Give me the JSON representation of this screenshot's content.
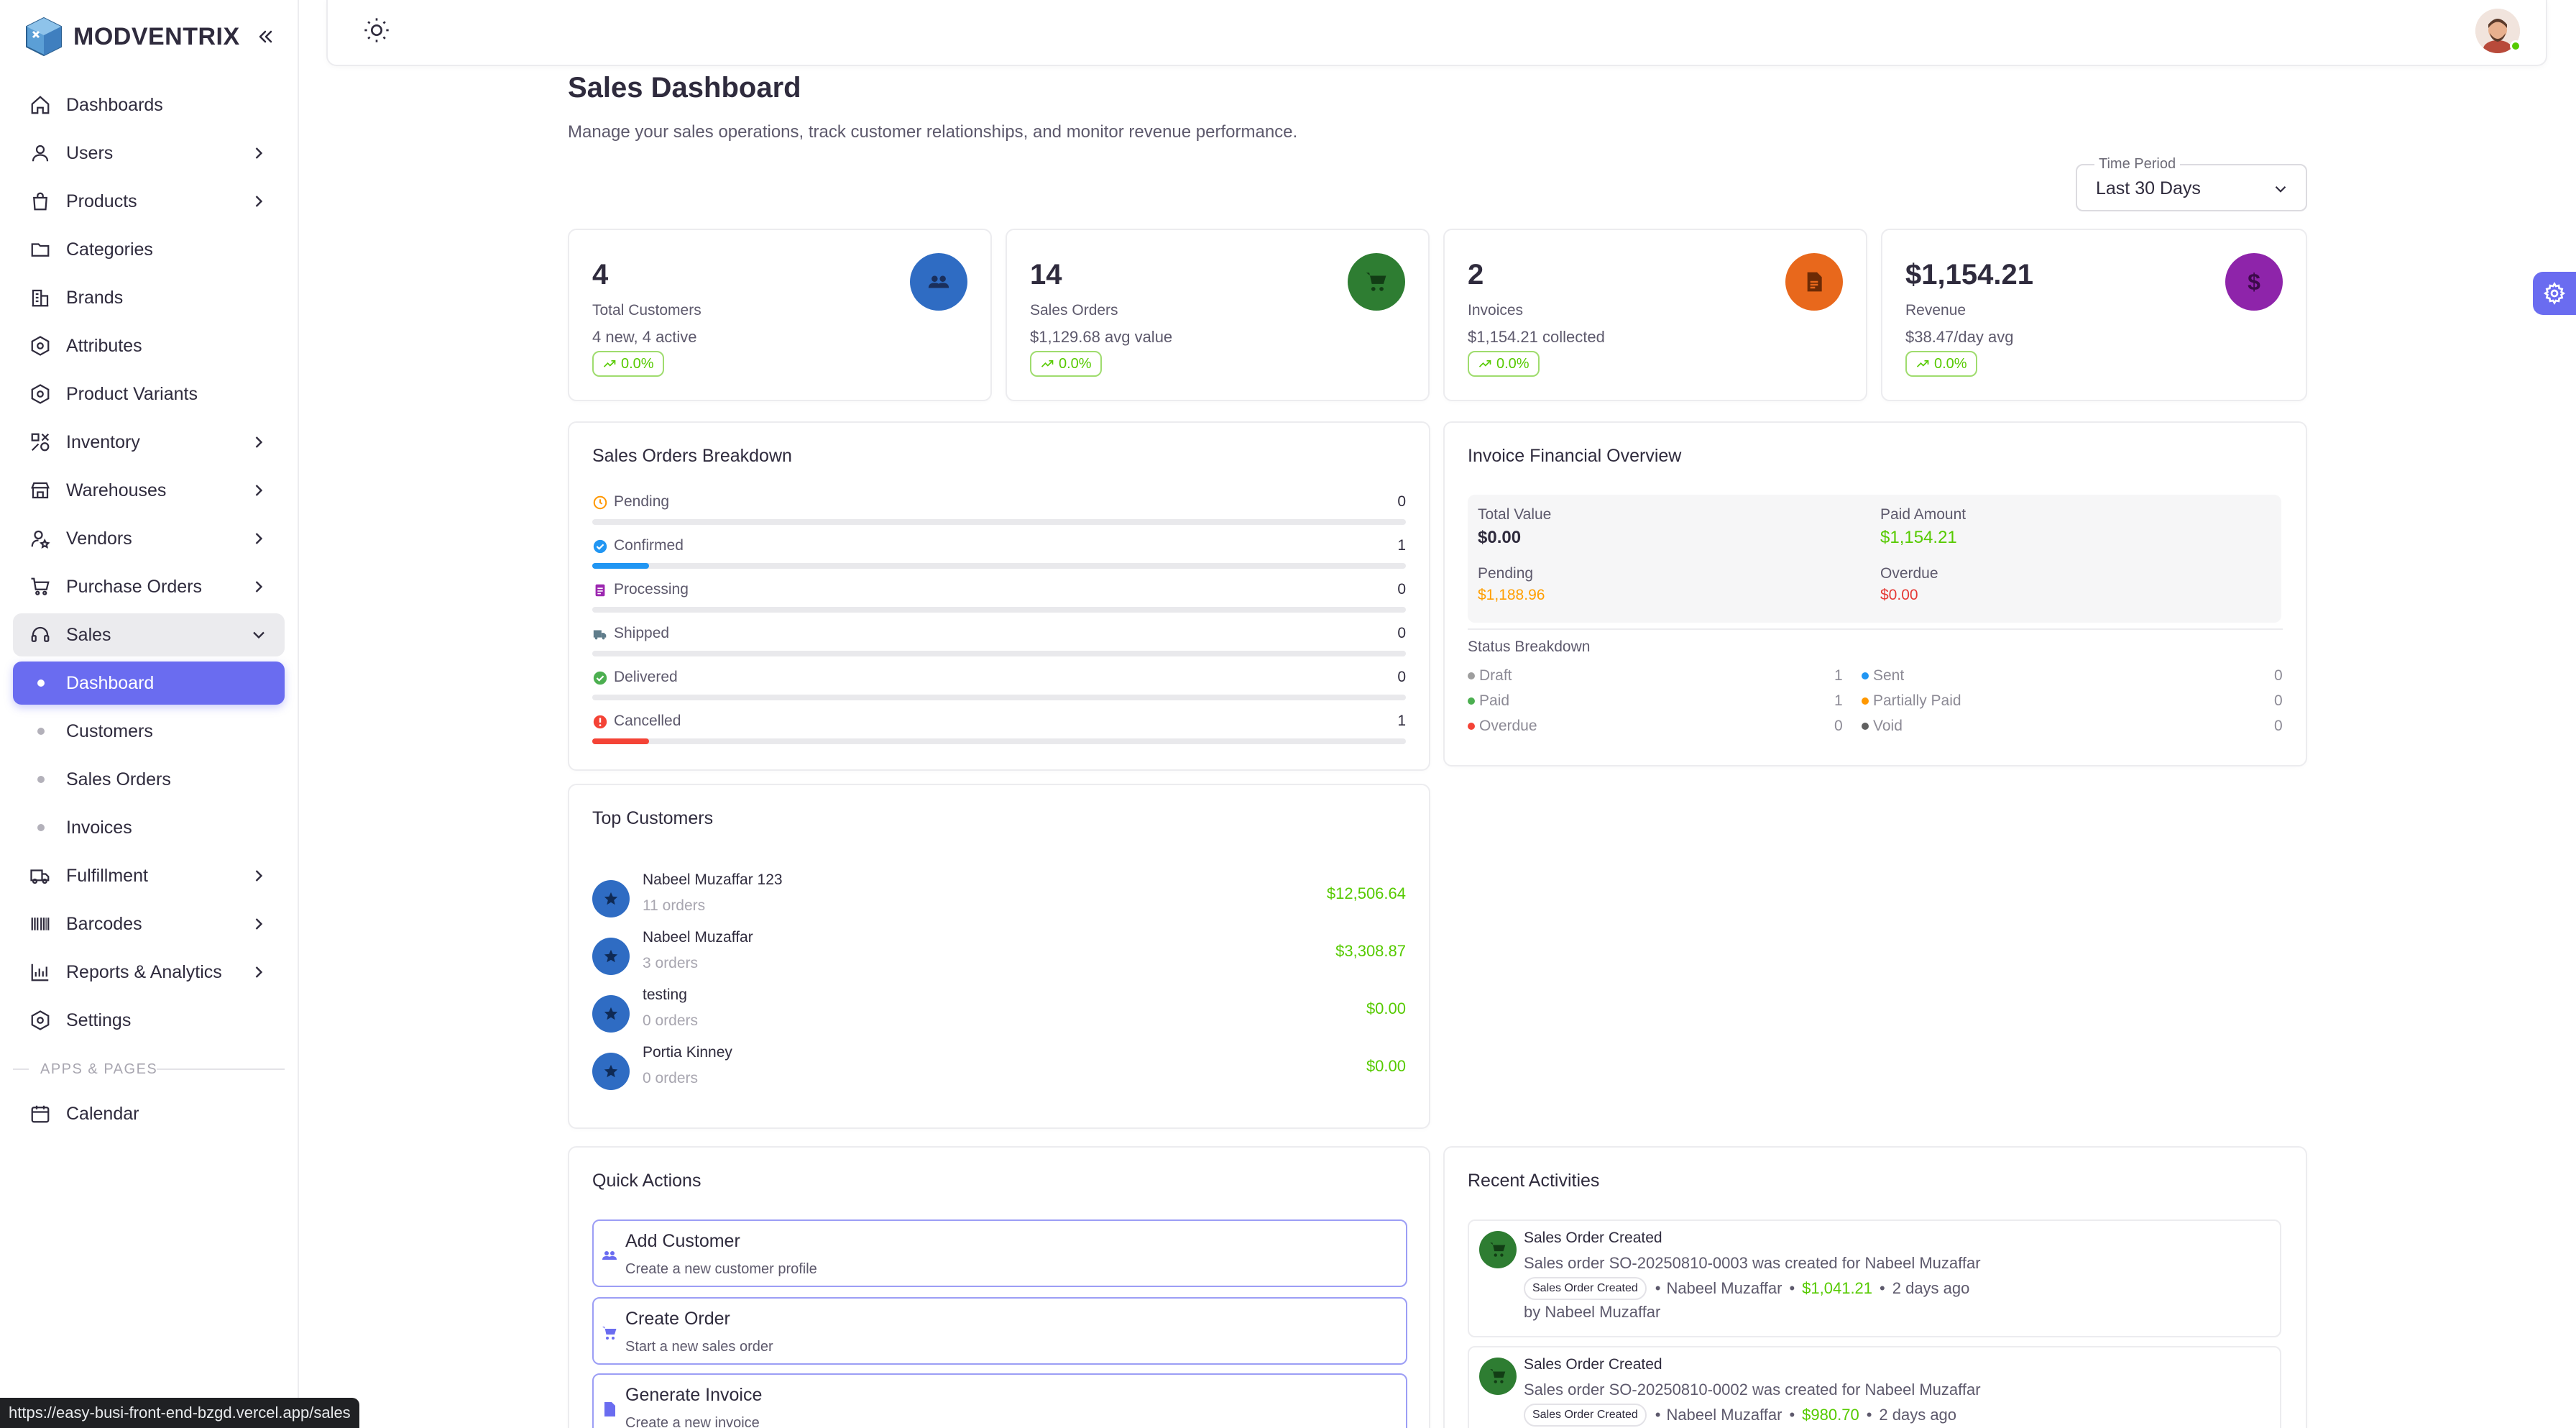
{
  "brand": {
    "name": "MODVENTRIX"
  },
  "nav": {
    "items": [
      {
        "label": "Dashboards",
        "icon": "home-icon",
        "chevron": false
      },
      {
        "label": "Users",
        "icon": "user-icon",
        "chevron": true
      },
      {
        "label": "Products",
        "icon": "bag-icon",
        "chevron": true
      },
      {
        "label": "Categories",
        "icon": "folder-icon",
        "chevron": false
      },
      {
        "label": "Brands",
        "icon": "building-icon",
        "chevron": false
      },
      {
        "label": "Attributes",
        "icon": "hexagon-icon",
        "chevron": false
      },
      {
        "label": "Product Variants",
        "icon": "hexagon-icon",
        "chevron": false
      },
      {
        "label": "Inventory",
        "icon": "shapes-icon",
        "chevron": true
      },
      {
        "label": "Warehouses",
        "icon": "store-icon",
        "chevron": true
      },
      {
        "label": "Vendors",
        "icon": "user-star-icon",
        "chevron": true
      },
      {
        "label": "Purchase Orders",
        "icon": "cart-icon",
        "chevron": true
      },
      {
        "label": "Sales",
        "icon": "headset-icon",
        "chevron": true,
        "open": true
      }
    ],
    "sales_sub": [
      {
        "label": "Dashboard",
        "active": true
      },
      {
        "label": "Customers"
      },
      {
        "label": "Sales Orders"
      },
      {
        "label": "Invoices"
      }
    ],
    "items_after": [
      {
        "label": "Fulfillment",
        "icon": "truck-icon",
        "chevron": true
      },
      {
        "label": "Barcodes",
        "icon": "barcode-icon",
        "chevron": true
      },
      {
        "label": "Reports & Analytics",
        "icon": "chart-icon",
        "chevron": true
      },
      {
        "label": "Settings",
        "icon": "hexagon-icon",
        "chevron": false
      }
    ],
    "section_label": "APPS & PAGES",
    "apps": [
      {
        "label": "Calendar",
        "icon": "calendar-icon"
      }
    ]
  },
  "page": {
    "title": "Sales Dashboard",
    "subtitle": "Manage your sales operations, track customer relationships, and monitor revenue performance."
  },
  "time_period": {
    "label": "Time Period",
    "value": "Last 30 Days"
  },
  "stats": [
    {
      "value": "4",
      "label": "Total Customers",
      "detail": "4 new, 4 active",
      "trend": "0.0%",
      "icon": "users-icon",
      "color": "#2f6cc3"
    },
    {
      "value": "14",
      "label": "Sales Orders",
      "detail": "$1,129.68 avg value",
      "trend": "0.0%",
      "icon": "cart-icon",
      "color": "#2e7d32"
    },
    {
      "value": "2",
      "label": "Invoices",
      "detail": "$1,154.21 collected",
      "trend": "0.0%",
      "icon": "receipt-icon",
      "color": "#e8681c"
    },
    {
      "value": "$1,154.21",
      "label": "Revenue",
      "detail": "$38.47/day avg",
      "trend": "0.0%",
      "icon": "dollar-icon",
      "color": "#8e24aa"
    }
  ],
  "breakdown": {
    "title": "Sales Orders Breakdown",
    "rows": [
      {
        "label": "Pending",
        "count": "0",
        "fraction": 0,
        "color": "#ff9800",
        "icon": "clock-icon"
      },
      {
        "label": "Confirmed",
        "count": "1",
        "fraction": 0.07,
        "color": "#2196f3",
        "icon": "check-circle-icon"
      },
      {
        "label": "Processing",
        "count": "0",
        "fraction": 0,
        "color": "#9c27b0",
        "icon": "clipboard-icon"
      },
      {
        "label": "Shipped",
        "count": "0",
        "fraction": 0,
        "color": "#607d8b",
        "icon": "truck-icon"
      },
      {
        "label": "Delivered",
        "count": "0",
        "fraction": 0,
        "color": "#4caf50",
        "icon": "check-circle-icon"
      },
      {
        "label": "Cancelled",
        "count": "1",
        "fraction": 0.07,
        "color": "#f44336",
        "icon": "alert-circle-icon"
      }
    ]
  },
  "financial": {
    "title": "Invoice Financial Overview",
    "total_value_label": "Total Value",
    "total_value": "$0.00",
    "paid_label": "Paid Amount",
    "paid": "$1,154.21",
    "pending_label": "Pending",
    "pending": "$1,188.96",
    "overdue_label": "Overdue",
    "overdue": "$0.00",
    "status_title": "Status Breakdown",
    "statuses": [
      {
        "label": "Draft",
        "count": "1",
        "color": "#9e9e9e"
      },
      {
        "label": "Sent",
        "count": "0",
        "color": "#2196f3"
      },
      {
        "label": "Paid",
        "count": "1",
        "color": "#4caf50"
      },
      {
        "label": "Partially Paid",
        "count": "0",
        "color": "#ff9800"
      },
      {
        "label": "Overdue",
        "count": "0",
        "color": "#f44336"
      },
      {
        "label": "Void",
        "count": "0",
        "color": "#616161"
      }
    ]
  },
  "top_customers": {
    "title": "Top Customers",
    "rows": [
      {
        "name": "Nabeel Muzaffar 123",
        "orders": "11 orders",
        "amount": "$12,506.64"
      },
      {
        "name": "Nabeel Muzaffar",
        "orders": "3 orders",
        "amount": "$3,308.87"
      },
      {
        "name": "testing",
        "orders": "0 orders",
        "amount": "$0.00"
      },
      {
        "name": "Portia Kinney",
        "orders": "0 orders",
        "amount": "$0.00"
      }
    ]
  },
  "quick_actions": {
    "title": "Quick Actions",
    "items": [
      {
        "title": "Add Customer",
        "subtitle": "Create a new customer profile",
        "icon": "users-icon"
      },
      {
        "title": "Create Order",
        "subtitle": "Start a new sales order",
        "icon": "cart-icon"
      },
      {
        "title": "Generate Invoice",
        "subtitle": "Create a new invoice",
        "icon": "receipt-icon"
      }
    ]
  },
  "recent": {
    "title": "Recent Activities",
    "items": [
      {
        "title": "Sales Order Created",
        "desc": "Sales order SO-20250810-0003 was created for Nabeel Muzaffar",
        "chip": "Sales Order Created",
        "customer": "Nabeel Muzaffar",
        "amount": "$1,041.21",
        "time": "2 days ago",
        "by": "by Nabeel Muzaffar"
      },
      {
        "title": "Sales Order Created",
        "desc": "Sales order SO-20250810-0002 was created for Nabeel Muzaffar",
        "chip": "Sales Order Created",
        "customer": "Nabeel Muzaffar",
        "amount": "$980.70",
        "time": "2 days ago",
        "by": ""
      }
    ]
  },
  "status_bar": {
    "url": "https://easy-busi-front-end-bzgd.vercel.app/sales"
  }
}
